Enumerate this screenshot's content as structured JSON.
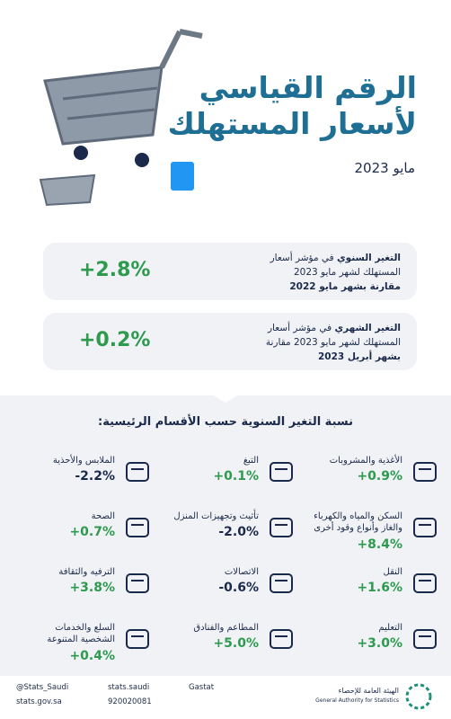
{
  "header": {
    "title_line1": "الرقم القياسي",
    "title_line2": "لأسعار المستهلك",
    "date": "مايو 2023"
  },
  "cards": [
    {
      "value": "+2.8%",
      "lead": "التغير السنوي",
      "line1": "في مؤشر أسعار",
      "line2": "المستهلك لشهر مايو 2023",
      "line3": "مقارنة بشهر مايو 2022"
    },
    {
      "value": "+0.2%",
      "lead": "التغير الشهري",
      "line1": "في مؤشر أسعار",
      "line2": "المستهلك لشهر مايو 2023 مقارنة",
      "line3": "بشهر أبريل 2023"
    }
  ],
  "section": {
    "heading": "نسبة التغير السنوية حسب الأقسام الرئيسية:",
    "items": [
      {
        "label": [
          "الأغذية والمشروبات"
        ],
        "value": "+0.9%"
      },
      {
        "label": [
          "التبغ"
        ],
        "value": "+0.1%"
      },
      {
        "label": [
          "الملابس والأحذية"
        ],
        "value": "-2.2%"
      },
      {
        "label": [
          "السكن والمياه والكهرباء",
          "والغاز وأنواع وقود أخرى"
        ],
        "value": "+8.4%"
      },
      {
        "label": [
          "تأثيث وتجهيزات المنزل"
        ],
        "value": "-2.0%"
      },
      {
        "label": [
          "الصحة"
        ],
        "value": "+0.7%"
      },
      {
        "label": [
          "النقل"
        ],
        "value": "+1.6%"
      },
      {
        "label": [
          "الاتصالات"
        ],
        "value": "-0.6%"
      },
      {
        "label": [
          "الترفيه والثقافة"
        ],
        "value": "+3.8%"
      },
      {
        "label": [
          "التعليم"
        ],
        "value": "+3.0%"
      },
      {
        "label": [
          "المطاعم والفنادق"
        ],
        "value": "+5.0%"
      },
      {
        "label": [
          "السلع والخدمات",
          "الشخصية المتنوعة"
        ],
        "value": "+0.4%"
      }
    ]
  },
  "footer": {
    "twitter": "@Stats_Saudi",
    "social": "stats.saudi",
    "app": "Gastat",
    "website": "stats.gov.sa",
    "phone": "920020081",
    "org_ar": "الهيئة العامة للإحصاء",
    "org_en": "General Authority for Statistics"
  }
}
